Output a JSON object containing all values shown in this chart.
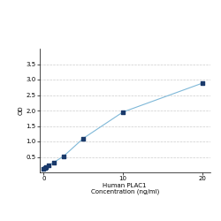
{
  "x_values": [
    0.0,
    0.156,
    0.3125,
    0.625,
    1.25,
    2.5,
    5.0,
    10.0,
    20.0
  ],
  "y_values": [
    0.105,
    0.13,
    0.175,
    0.23,
    0.32,
    0.52,
    1.1,
    1.95,
    2.88
  ],
  "marker_color": "#1a3a6b",
  "line_color": "#7fb8d8",
  "xlabel_line1": "Human PLAC1",
  "xlabel_line2": "Concentration (ng/ml)",
  "ylabel": "OD",
  "xlim": [
    -0.5,
    21
  ],
  "ylim": [
    0,
    4.0
  ],
  "yticks": [
    0.5,
    1.0,
    1.5,
    2.0,
    2.5,
    3.0,
    3.5
  ],
  "xtick_positions": [
    0,
    10,
    20
  ],
  "xtick_labels": [
    "0",
    "10",
    "20"
  ],
  "grid_color": "#cccccc",
  "bg_color": "#ffffff",
  "label_fontsize": 5.0,
  "tick_fontsize": 5.0,
  "marker_size": 12,
  "line_width": 0.8
}
